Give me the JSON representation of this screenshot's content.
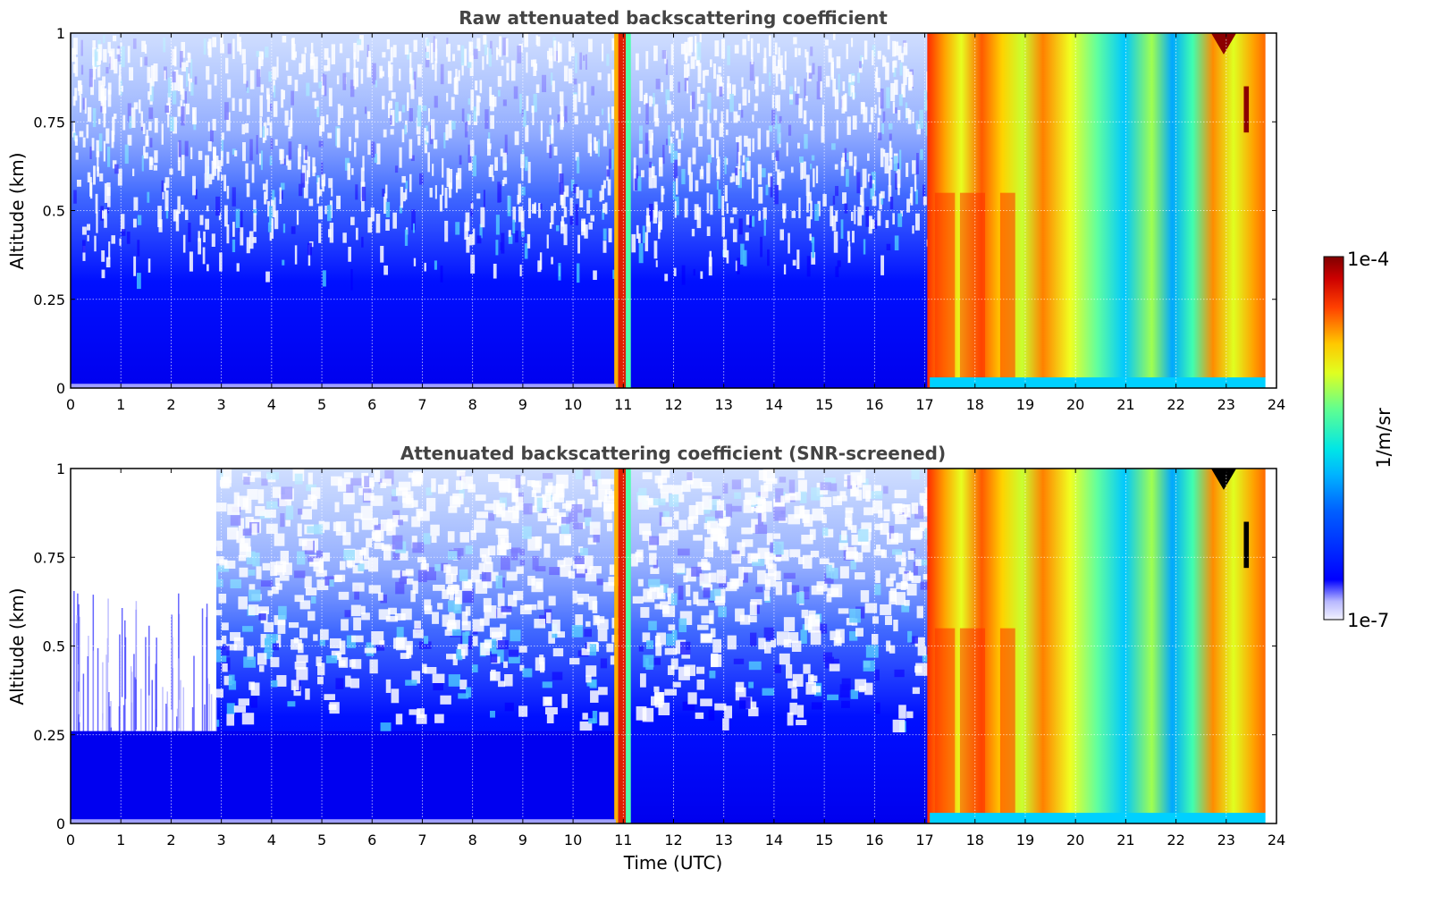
{
  "chart_data": [
    {
      "type": "heatmap",
      "title": "Raw attenuated backscattering coefficient",
      "xlabel": "",
      "ylabel": "Altitude (km)",
      "xlim": [
        0,
        24
      ],
      "ylim": [
        0,
        1
      ],
      "x_ticks": [
        "0",
        "1",
        "2",
        "3",
        "4",
        "5",
        "6",
        "7",
        "8",
        "9",
        "10",
        "11",
        "12",
        "13",
        "14",
        "15",
        "16",
        "17",
        "18",
        "19",
        "20",
        "21",
        "22",
        "23",
        "24"
      ],
      "y_ticks": [
        "0",
        "0.25",
        "0.5",
        "0.75",
        "1"
      ],
      "grid": true,
      "colormap": "jet",
      "color_scale": "log",
      "features": [
        {
          "x_range": [
            0,
            10.9
          ],
          "description": "low backscatter, noisy above 0.3 km",
          "level": "low"
        },
        {
          "x_range": [
            10.9,
            11.1
          ],
          "description": "high backscatter column",
          "level": "high"
        },
        {
          "x_range": [
            11.1,
            17.1
          ],
          "description": "low backscatter, noisy",
          "level": "low"
        },
        {
          "x_range": [
            17.1,
            23.8
          ],
          "description": "high backscatter with red streaks",
          "level": "high"
        },
        {
          "x_range": [
            22.7,
            23.2
          ],
          "y_range": [
            0.95,
            1.0
          ],
          "description": "maximum (dark red) patch",
          "level": "max"
        }
      ]
    },
    {
      "type": "heatmap",
      "title": "Attenuated backscattering coefficient (SNR-screened)",
      "xlabel": "Time (UTC)",
      "ylabel": "Altitude (km)",
      "xlim": [
        0,
        24
      ],
      "ylim": [
        0,
        1
      ],
      "x_ticks": [
        "0",
        "1",
        "2",
        "3",
        "4",
        "5",
        "6",
        "7",
        "8",
        "9",
        "10",
        "11",
        "12",
        "13",
        "14",
        "15",
        "16",
        "17",
        "18",
        "19",
        "20",
        "21",
        "22",
        "23",
        "24"
      ],
      "y_ticks": [
        "0",
        "0.25",
        "0.5",
        "0.75",
        "1"
      ],
      "grid": true,
      "colormap": "jet",
      "color_scale": "log",
      "features": [
        {
          "x_range": [
            0,
            2.9
          ],
          "y_range": [
            0.26,
            1.0
          ],
          "description": "screened out, white stripes",
          "level": "masked"
        },
        {
          "x_range": [
            0,
            10.9
          ],
          "y_range": [
            0,
            0.26
          ],
          "description": "uniform low backscatter",
          "level": "low"
        },
        {
          "x_range": [
            10.9,
            11.1
          ],
          "description": "high backscatter column",
          "level": "high"
        },
        {
          "x_range": [
            17.1,
            23.8
          ],
          "description": "high backscatter with red streaks",
          "level": "high"
        },
        {
          "x_range": [
            22.7,
            23.2
          ],
          "y_range": [
            0.95,
            1.0
          ],
          "description": "black (out of range) patch",
          "level": "over"
        }
      ]
    }
  ],
  "colorbar": {
    "max_label": "1e-4",
    "min_label": "1e-7",
    "unit_label": "1/m/sr",
    "range": [
      1e-07,
      0.0001
    ]
  }
}
